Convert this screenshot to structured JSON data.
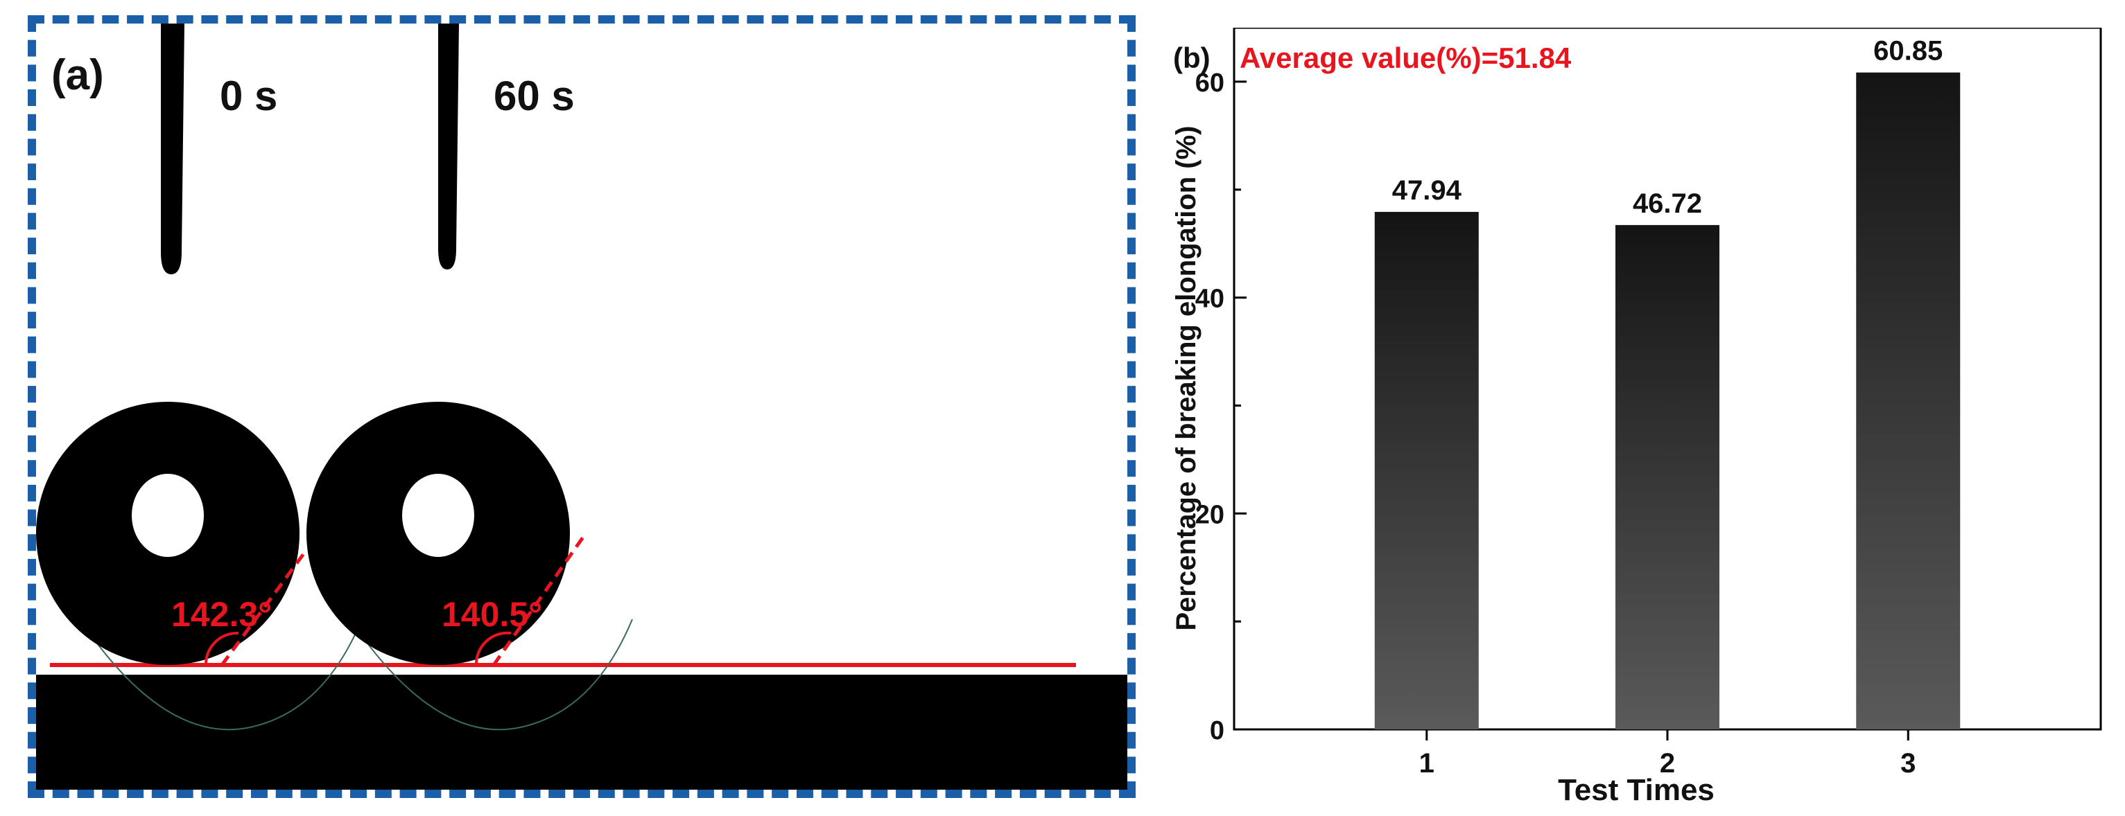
{
  "panel_a": {
    "label": "(a)",
    "frames": [
      {
        "time_label": "0 s",
        "angle_label": "142.3°"
      },
      {
        "time_label": "60 s",
        "angle_label": "140.5°"
      }
    ],
    "colors": {
      "border": "#1a5fa8",
      "annotation": "#e8141e",
      "drop": "#000000"
    }
  },
  "chart_data": {
    "type": "bar",
    "panel_label": "(b)",
    "annotation": "Average value(%)=51.84",
    "categories": [
      "1",
      "2",
      "3"
    ],
    "values": [
      47.94,
      46.72,
      60.85
    ],
    "value_labels": [
      "47.94",
      "46.72",
      "60.85"
    ],
    "xlabel": "Test Times",
    "ylabel": "Percentage of breaking elongation (%)",
    "ylim": [
      0,
      65
    ],
    "yticks": [
      0,
      20,
      40,
      60
    ],
    "yticks_labels": [
      "0",
      "20",
      "40",
      "60"
    ],
    "grid": false,
    "colors": {
      "bar_top": "#141414",
      "bar_bottom": "#5a5a5a",
      "annotation": "#e8141e"
    }
  }
}
